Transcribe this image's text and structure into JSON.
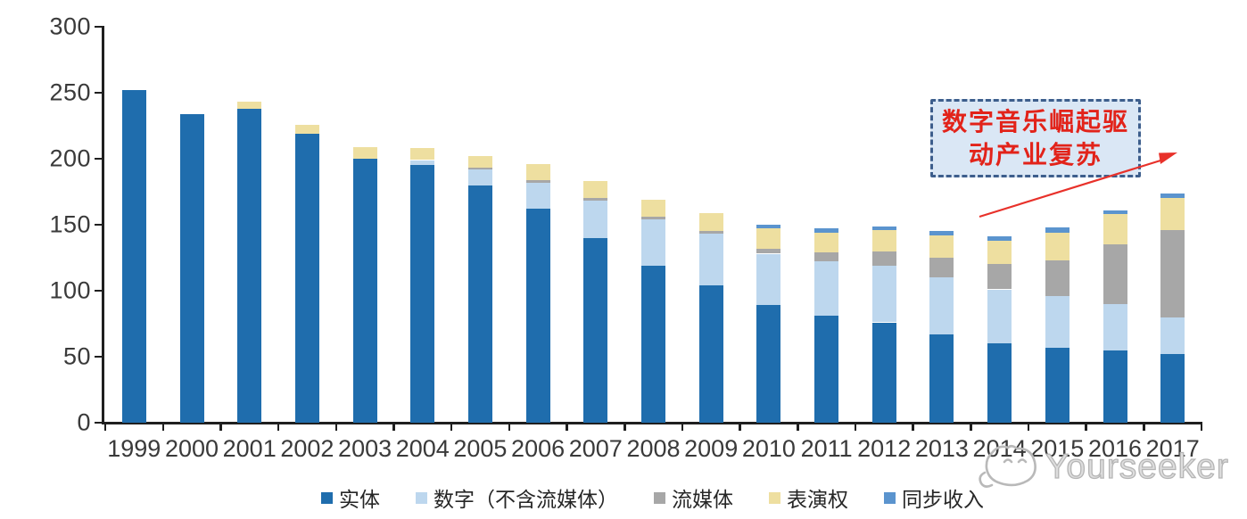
{
  "chart_data": {
    "type": "bar",
    "stacked": true,
    "title": "",
    "xlabel": "",
    "ylabel": "",
    "categories": [
      "1999",
      "2000",
      "2001",
      "2002",
      "2003",
      "2004",
      "2005",
      "2006",
      "2007",
      "2008",
      "2009",
      "2010",
      "2011",
      "2012",
      "2013",
      "2014",
      "2015",
      "2016",
      "2017"
    ],
    "series": [
      {
        "name": "实体",
        "color": "#1f6dad",
        "values": [
          252,
          234,
          238,
          219,
          200,
          195,
          180,
          162,
          140,
          119,
          104,
          89,
          81,
          76,
          67,
          60,
          57,
          55,
          52
        ]
      },
      {
        "name": "数字（不含流媒体）",
        "color": "#bdd7ee",
        "values": [
          0,
          0,
          0,
          0,
          0,
          4,
          12,
          20,
          28,
          35,
          39,
          39,
          41,
          43,
          43,
          41,
          39,
          35,
          28
        ]
      },
      {
        "name": "流媒体",
        "color": "#a7a7a7",
        "values": [
          0,
          0,
          0,
          0,
          0,
          0,
          1,
          2,
          2,
          2,
          2,
          4,
          7,
          11,
          15,
          19,
          27,
          45,
          66
        ]
      },
      {
        "name": "表演权",
        "color": "#eedfa0",
        "values": [
          0,
          0,
          5,
          7,
          9,
          9,
          9,
          12,
          13,
          13,
          14,
          15,
          15,
          16,
          17,
          18,
          21,
          23,
          24
        ]
      },
      {
        "name": "同步收入",
        "color": "#5b94ce",
        "values": [
          0,
          0,
          0,
          0,
          0,
          0,
          0,
          0,
          0,
          0,
          0,
          3,
          3,
          3,
          3,
          3,
          4,
          3,
          4
        ]
      }
    ],
    "ylim": [
      0,
      300
    ],
    "yticks": [
      0,
      50,
      100,
      150,
      200,
      250,
      300
    ],
    "grid": false,
    "legend_position": "bottom"
  },
  "annotation": {
    "text": "数字音乐崛起驱动产业复苏",
    "line1": "数字音乐崛起驱",
    "line2": "动产业复苏",
    "text_color": "#e2231a",
    "box_fill": "#dae7f5",
    "box_border": "#3d5e8c",
    "arrow_color": "#e8312a"
  },
  "watermark": {
    "text": "Yourseeker",
    "color": "#b5b5b5"
  }
}
